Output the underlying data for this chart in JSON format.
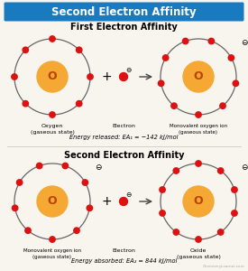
{
  "title": "Second Electron Affinity",
  "title_bg": "#1a7abf",
  "title_color": "white",
  "section1_title": "First Electron Affinity",
  "section2_title": "Second Electron Affinity",
  "energy1_text": "Energy released: EA₁ = −142 kJ/mol",
  "energy2_text": "Energy absorbed: EA₂ = 844 kJ/mol",
  "label_oxygen": "Oxygen\n(gaseous state)",
  "label_electron1": "Electron",
  "label_mono_ion1": "Monovalent oxygen ion\n(gaseous state)",
  "label_mono_ion2": "Monovalent oxygen ion\n(gaseous state)",
  "label_electron2": "Electron",
  "label_oxide": "Oxide\n(gaseous state)",
  "watermark": "ChemistryLearner.com",
  "bg_color": "#f8f5ef",
  "orbit_color": "#666666",
  "nucleus_color": "#f5a833",
  "electron_color": "#dd1111",
  "nucleus_label_color": "#b84400"
}
